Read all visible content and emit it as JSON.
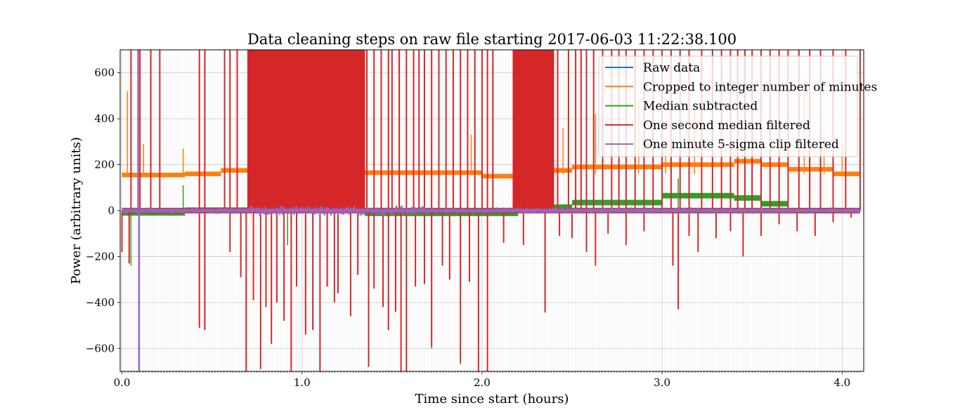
{
  "chart_data": {
    "type": "line",
    "title": "Data cleaning steps on raw file starting 2017-06-03 11:22:38.100",
    "xlabel": "Time since start (hours)",
    "ylabel": "Power (arbitrary units)",
    "xlim": [
      -0.01,
      4.12
    ],
    "ylim": [
      -700,
      700
    ],
    "xticks": [
      0.0,
      1.0,
      2.0,
      3.0,
      4.0
    ],
    "xtick_labels": [
      "0.0",
      "1.0",
      "2.0",
      "3.0",
      "4.0"
    ],
    "yticks": [
      600,
      400,
      200,
      0,
      -200,
      -400,
      -600
    ],
    "ytick_labels": [
      "600",
      "400",
      "200",
      "0",
      "−200",
      "−400",
      "−600"
    ],
    "grid": true,
    "legend_position": "upper right",
    "series": [
      {
        "name": "Raw data",
        "color": "#1f77b4",
        "description": "hidden beneath the cropped series (identical values)",
        "levels": []
      },
      {
        "name": "Cropped to integer number of minutes",
        "color": "#ff7f0e",
        "levels": [
          {
            "x0": 0.0,
            "x1": 0.35,
            "y": 155
          },
          {
            "x0": 0.35,
            "x1": 0.55,
            "y": 160
          },
          {
            "x0": 0.55,
            "x1": 1.35,
            "y": 175
          },
          {
            "x0": 1.35,
            "x1": 2.0,
            "y": 165
          },
          {
            "x0": 2.0,
            "x1": 2.2,
            "y": 150
          },
          {
            "x0": 2.2,
            "x1": 2.5,
            "y": 175
          },
          {
            "x0": 2.5,
            "x1": 3.0,
            "y": 190
          },
          {
            "x0": 3.0,
            "x1": 3.4,
            "y": 200
          },
          {
            "x0": 3.4,
            "x1": 3.55,
            "y": 215
          },
          {
            "x0": 3.55,
            "x1": 3.7,
            "y": 200
          },
          {
            "x0": 3.7,
            "x1": 3.95,
            "y": 180
          },
          {
            "x0": 3.95,
            "x1": 4.1,
            "y": 160
          }
        ],
        "spikes": [
          {
            "x": 0.03,
            "y": 520
          },
          {
            "x": 0.05,
            "y": 440
          },
          {
            "x": 0.12,
            "y": 290
          },
          {
            "x": 0.34,
            "y": 270
          },
          {
            "x": 0.57,
            "y": 320
          },
          {
            "x": 1.33,
            "y": 370
          },
          {
            "x": 1.5,
            "y": 440
          },
          {
            "x": 1.72,
            "y": 290
          },
          {
            "x": 1.94,
            "y": 330
          },
          {
            "x": 2.2,
            "y": 440
          },
          {
            "x": 2.45,
            "y": 360
          },
          {
            "x": 2.63,
            "y": 420
          },
          {
            "x": 2.87,
            "y": 480
          },
          {
            "x": 3.02,
            "y": 320
          },
          {
            "x": 3.18,
            "y": 440
          },
          {
            "x": 3.42,
            "y": 330
          },
          {
            "x": 3.55,
            "y": 370
          },
          {
            "x": 3.79,
            "y": 560
          },
          {
            "x": 3.9,
            "y": 330
          },
          {
            "x": 4.0,
            "y": 300
          },
          {
            "x": 4.1,
            "y": 500
          }
        ]
      },
      {
        "name": "Median subtracted",
        "color": "#2ca02c",
        "levels": [
          {
            "x0": 0.0,
            "x1": 0.35,
            "y": -10
          },
          {
            "x0": 0.35,
            "x1": 1.35,
            "y": 2
          },
          {
            "x0": 1.35,
            "x1": 2.2,
            "y": -12
          },
          {
            "x0": 2.2,
            "x1": 2.5,
            "y": 15
          },
          {
            "x0": 2.5,
            "x1": 3.0,
            "y": 35
          },
          {
            "x0": 3.0,
            "x1": 3.4,
            "y": 65
          },
          {
            "x0": 3.4,
            "x1": 3.55,
            "y": 55
          },
          {
            "x0": 3.55,
            "x1": 3.7,
            "y": 30
          },
          {
            "x0": 3.7,
            "x1": 4.1,
            "y": 0
          }
        ],
        "spikes": [
          {
            "x": 0.05,
            "y": -240
          },
          {
            "x": 0.34,
            "y": 110
          },
          {
            "x": 0.92,
            "y": -150
          },
          {
            "x": 1.72,
            "y": -600
          },
          {
            "x": 1.88,
            "y": -670
          },
          {
            "x": 2.35,
            "y": -445
          },
          {
            "x": 3.09,
            "y": 140
          },
          {
            "x": 3.5,
            "y": 300
          },
          {
            "x": 4.1,
            "y": 340
          }
        ]
      },
      {
        "name": "One second median filtered",
        "color": "#d62728",
        "dense_bands": [
          [
            0.7,
            1.35
          ],
          [
            2.17,
            2.4
          ]
        ],
        "spikes_up": [
          0.05,
          0.1,
          0.16,
          0.21,
          0.43,
          0.46,
          0.57,
          0.6,
          0.64,
          0.7,
          0.75,
          0.85,
          0.95,
          1.18,
          1.24,
          1.28,
          1.32,
          1.36,
          1.4,
          1.44,
          1.48,
          1.5,
          1.54,
          1.58,
          1.62,
          1.65,
          1.68,
          1.72,
          1.76,
          1.8,
          1.84,
          1.88,
          1.92,
          1.96,
          2.0,
          2.03,
          2.06,
          2.42,
          2.48,
          2.52,
          2.55,
          2.58,
          2.62,
          2.67,
          2.72,
          2.76,
          2.8,
          2.85,
          2.9,
          2.95,
          3.0,
          3.05,
          3.1,
          3.15,
          3.22,
          3.28,
          3.33,
          3.38,
          3.42,
          3.46,
          3.5,
          3.55,
          3.6,
          3.65,
          3.7,
          3.76,
          3.82,
          3.88,
          3.95,
          4.02,
          4.1
        ],
        "spikes_down": [
          {
            "x": 0.0,
            "y": -180
          },
          {
            "x": 0.04,
            "y": -230
          },
          {
            "x": 0.43,
            "y": -510
          },
          {
            "x": 0.46,
            "y": -520
          },
          {
            "x": 0.6,
            "y": -180
          },
          {
            "x": 0.66,
            "y": -290
          },
          {
            "x": 0.69,
            "y": -700
          },
          {
            "x": 0.73,
            "y": -390
          },
          {
            "x": 0.77,
            "y": -690
          },
          {
            "x": 0.8,
            "y": -420
          },
          {
            "x": 0.83,
            "y": -580
          },
          {
            "x": 0.86,
            "y": -400
          },
          {
            "x": 0.9,
            "y": -480
          },
          {
            "x": 0.94,
            "y": -700
          },
          {
            "x": 0.97,
            "y": -330
          },
          {
            "x": 1.02,
            "y": -540
          },
          {
            "x": 1.06,
            "y": -520
          },
          {
            "x": 1.1,
            "y": -700
          },
          {
            "x": 1.14,
            "y": -330
          },
          {
            "x": 1.18,
            "y": -400
          },
          {
            "x": 1.2,
            "y": -360
          },
          {
            "x": 1.27,
            "y": -460
          },
          {
            "x": 1.31,
            "y": -280
          },
          {
            "x": 1.37,
            "y": -680
          },
          {
            "x": 1.4,
            "y": -340
          },
          {
            "x": 1.45,
            "y": -420
          },
          {
            "x": 1.48,
            "y": -520
          },
          {
            "x": 1.52,
            "y": -440
          },
          {
            "x": 1.55,
            "y": -700
          },
          {
            "x": 1.58,
            "y": -700
          },
          {
            "x": 1.63,
            "y": -330
          },
          {
            "x": 1.68,
            "y": -320
          },
          {
            "x": 1.72,
            "y": -590
          },
          {
            "x": 1.78,
            "y": -240
          },
          {
            "x": 1.82,
            "y": -300
          },
          {
            "x": 1.88,
            "y": -660
          },
          {
            "x": 1.93,
            "y": -310
          },
          {
            "x": 1.98,
            "y": -700
          },
          {
            "x": 2.03,
            "y": -700
          },
          {
            "x": 2.12,
            "y": -140
          },
          {
            "x": 2.23,
            "y": -150
          },
          {
            "x": 2.35,
            "y": -440
          },
          {
            "x": 2.43,
            "y": -110
          },
          {
            "x": 2.5,
            "y": -120
          },
          {
            "x": 2.58,
            "y": -180
          },
          {
            "x": 2.63,
            "y": -240
          },
          {
            "x": 2.7,
            "y": -100
          },
          {
            "x": 2.8,
            "y": -150
          },
          {
            "x": 2.9,
            "y": -90
          },
          {
            "x": 3.06,
            "y": -240
          },
          {
            "x": 3.09,
            "y": -430
          },
          {
            "x": 3.15,
            "y": -110
          },
          {
            "x": 3.2,
            "y": -180
          },
          {
            "x": 3.3,
            "y": -120
          },
          {
            "x": 3.38,
            "y": -90
          },
          {
            "x": 3.45,
            "y": -200
          },
          {
            "x": 3.55,
            "y": -110
          },
          {
            "x": 3.65,
            "y": -60
          },
          {
            "x": 3.75,
            "y": -90
          },
          {
            "x": 3.85,
            "y": -110
          },
          {
            "x": 3.95,
            "y": -50
          },
          {
            "x": 4.05,
            "y": -30
          }
        ]
      },
      {
        "name": "One minute 5-sigma clip filtered",
        "color": "#9467bd",
        "baseline": 0,
        "noise_amplitude": 20,
        "spikes": [
          {
            "x": 0.09,
            "y": 700
          },
          {
            "x": 0.095,
            "y": -700
          }
        ]
      }
    ]
  }
}
